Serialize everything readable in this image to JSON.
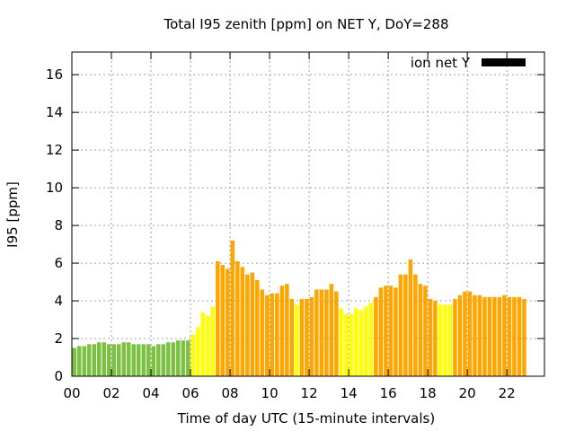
{
  "chart_data": {
    "type": "bar",
    "title": "Total I95 zenith [ppm] on NET Y, DoY=288",
    "xlabel": "Time of day UTC (15-minute intervals)",
    "ylabel": "I95 [ppm]",
    "xlim": [
      0,
      23.9
    ],
    "ylim": [
      0,
      17.2
    ],
    "x_ticks": [
      0,
      2,
      4,
      6,
      8,
      10,
      12,
      14,
      16,
      18,
      20,
      22
    ],
    "x_tick_labels": [
      "00",
      "02",
      "04",
      "06",
      "08",
      "10",
      "12",
      "14",
      "16",
      "18",
      "20",
      "22"
    ],
    "y_ticks": [
      0,
      2,
      4,
      6,
      8,
      10,
      12,
      14,
      16
    ],
    "y_tick_labels": [
      "0",
      "2",
      "4",
      "6",
      "8",
      "10",
      "12",
      "14",
      "16"
    ],
    "grid": true,
    "legend": {
      "label": "ion net Y",
      "color": "#000000",
      "placement": "top-right"
    },
    "interval_hours": 0.25,
    "colors": {
      "green": "#7cc242",
      "yellow": "#ffff00",
      "orange": "#ffa500"
    },
    "values": [
      1.5,
      1.6,
      1.6,
      1.7,
      1.7,
      1.8,
      1.8,
      1.7,
      1.7,
      1.7,
      1.8,
      1.8,
      1.7,
      1.7,
      1.7,
      1.7,
      1.6,
      1.7,
      1.7,
      1.8,
      1.8,
      1.9,
      1.9,
      1.9,
      2.2,
      2.6,
      3.4,
      3.2,
      3.7,
      6.1,
      5.9,
      5.7,
      7.2,
      6.1,
      5.8,
      5.4,
      5.5,
      5.1,
      4.6,
      4.3,
      4.4,
      4.4,
      4.8,
      4.9,
      4.1,
      3.8,
      4.1,
      4.1,
      4.2,
      4.6,
      4.6,
      4.6,
      4.9,
      4.5,
      3.6,
      3.3,
      3.3,
      3.6,
      3.5,
      3.7,
      3.9,
      4.2,
      4.7,
      4.8,
      4.8,
      4.7,
      5.4,
      5.4,
      6.2,
      5.4,
      4.9,
      4.8,
      4.1,
      4.0,
      3.8,
      3.8,
      3.8,
      4.1,
      4.3,
      4.5,
      4.5,
      4.3,
      4.3,
      4.2,
      4.2,
      4.2,
      4.2,
      4.3,
      4.2,
      4.2,
      4.2,
      4.1
    ],
    "bar_colors": [
      "green",
      "green",
      "green",
      "green",
      "green",
      "green",
      "green",
      "green",
      "green",
      "green",
      "green",
      "green",
      "green",
      "green",
      "green",
      "green",
      "green",
      "green",
      "green",
      "green",
      "green",
      "green",
      "green",
      "green",
      "yellow",
      "yellow",
      "yellow",
      "yellow",
      "yellow",
      "orange",
      "orange",
      "orange",
      "orange",
      "orange",
      "orange",
      "orange",
      "orange",
      "orange",
      "orange",
      "orange",
      "orange",
      "orange",
      "orange",
      "orange",
      "orange",
      "yellow",
      "orange",
      "orange",
      "orange",
      "orange",
      "orange",
      "orange",
      "orange",
      "orange",
      "yellow",
      "yellow",
      "yellow",
      "yellow",
      "yellow",
      "yellow",
      "yellow",
      "orange",
      "orange",
      "orange",
      "orange",
      "orange",
      "orange",
      "orange",
      "orange",
      "orange",
      "orange",
      "orange",
      "orange",
      "orange",
      "yellow",
      "yellow",
      "yellow",
      "orange",
      "orange",
      "orange",
      "orange",
      "orange",
      "orange",
      "orange",
      "orange",
      "orange",
      "orange",
      "orange",
      "orange",
      "orange",
      "orange",
      "orange"
    ]
  }
}
